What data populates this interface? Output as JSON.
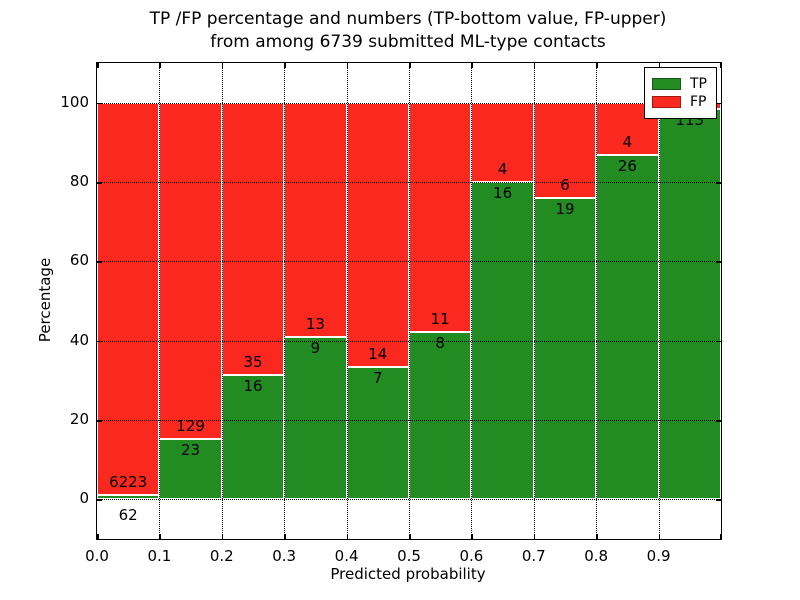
{
  "title": {
    "line1": "TP /FP percentage and numbers (TP-bottom value, FP-upper)",
    "line2": "from among 6739 submitted ML-type contacts"
  },
  "axes": {
    "xlabel": "Predicted probability",
    "ylabel": "Percentage",
    "x_tick_labels": [
      "0.0",
      "0.1",
      "0.2",
      "0.3",
      "0.4",
      "0.5",
      "0.6",
      "0.7",
      "0.8",
      "0.9"
    ],
    "y_tick_labels": [
      "0",
      "20",
      "40",
      "60",
      "80",
      "100"
    ]
  },
  "legend": {
    "position": "upper right",
    "items": [
      {
        "label": "TP",
        "color": "#228B22"
      },
      {
        "label": "FP",
        "color": "#FA281E"
      }
    ]
  },
  "chart_data": {
    "type": "bar",
    "stacked": true,
    "title": "TP /FP percentage and numbers (TP-bottom value, FP-upper) from among 6739 submitted ML-type contacts",
    "xlabel": "Predicted probability",
    "ylabel": "Percentage",
    "xlim": [
      0.0,
      1.0
    ],
    "ylim": [
      -10,
      110
    ],
    "x_ticks": [
      0.0,
      0.1,
      0.2,
      0.3,
      0.4,
      0.5,
      0.6,
      0.7,
      0.8,
      0.9
    ],
    "y_ticks": [
      0,
      20,
      40,
      60,
      80,
      100
    ],
    "grid": true,
    "total_contacts": 6739,
    "series": [
      {
        "name": "TP",
        "color": "#228B22"
      },
      {
        "name": "FP",
        "color": "#FA281E"
      }
    ],
    "bins": [
      {
        "x_start": 0.0,
        "x_end": 0.1,
        "tp_count": 62,
        "fp_count": 6223,
        "tp_pct": 1.0,
        "fp_pct": 99.0
      },
      {
        "x_start": 0.1,
        "x_end": 0.2,
        "tp_count": 23,
        "fp_count": 129,
        "tp_pct": 15.1,
        "fp_pct": 84.9
      },
      {
        "x_start": 0.2,
        "x_end": 0.3,
        "tp_count": 16,
        "fp_count": 35,
        "tp_pct": 31.4,
        "fp_pct": 68.6
      },
      {
        "x_start": 0.3,
        "x_end": 0.4,
        "tp_count": 9,
        "fp_count": 13,
        "tp_pct": 40.9,
        "fp_pct": 59.1
      },
      {
        "x_start": 0.4,
        "x_end": 0.5,
        "tp_count": 7,
        "fp_count": 14,
        "tp_pct": 33.3,
        "fp_pct": 66.7
      },
      {
        "x_start": 0.5,
        "x_end": 0.6,
        "tp_count": 8,
        "fp_count": 11,
        "tp_pct": 42.1,
        "fp_pct": 57.9
      },
      {
        "x_start": 0.6,
        "x_end": 0.7,
        "tp_count": 16,
        "fp_count": 4,
        "tp_pct": 80.0,
        "fp_pct": 20.0
      },
      {
        "x_start": 0.7,
        "x_end": 0.8,
        "tp_count": 19,
        "fp_count": 6,
        "tp_pct": 76.0,
        "fp_pct": 24.0
      },
      {
        "x_start": 0.8,
        "x_end": 0.9,
        "tp_count": 26,
        "fp_count": 4,
        "tp_pct": 86.7,
        "fp_pct": 13.3
      },
      {
        "x_start": 0.9,
        "x_end": 1.0,
        "tp_count": 113,
        "fp_count": null,
        "tp_pct": 98.3,
        "fp_pct": 1.7
      }
    ]
  }
}
